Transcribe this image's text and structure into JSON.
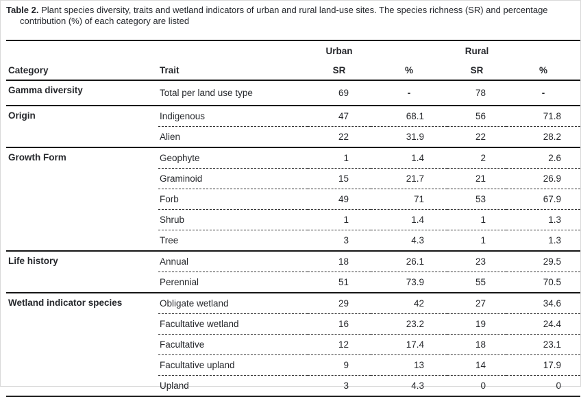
{
  "caption": {
    "label": "Table 2.",
    "text": "Plant species diversity, traits and wetland indicators of urban and rural land-use sites. The species richness (SR) and percentage contribution (%) of each category are listed"
  },
  "header": {
    "urban": "Urban",
    "rural": "Rural",
    "category": "Category",
    "trait": "Trait",
    "sr": "SR",
    "pct": "%"
  },
  "groups": [
    {
      "category": "Gamma diversity",
      "rows": [
        {
          "trait": "Total per land use type",
          "usr": "69",
          "upct": "-",
          "rsr": "78",
          "rpct": "-"
        }
      ]
    },
    {
      "category": "Origin",
      "rows": [
        {
          "trait": "Indigenous",
          "usr": "47",
          "upct": "68.1",
          "rsr": "56",
          "rpct": "71.8"
        },
        {
          "trait": "Alien",
          "usr": "22",
          "upct": "31.9",
          "rsr": "22",
          "rpct": "28.2"
        }
      ]
    },
    {
      "category": "Growth Form",
      "rows": [
        {
          "trait": "Geophyte",
          "usr": "1",
          "upct": "1.4",
          "rsr": "2",
          "rpct": "2.6"
        },
        {
          "trait": "Graminoid",
          "usr": "15",
          "upct": "21.7",
          "rsr": "21",
          "rpct": "26.9"
        },
        {
          "trait": "Forb",
          "usr": "49",
          "upct": "71",
          "rsr": "53",
          "rpct": "67.9"
        },
        {
          "trait": "Shrub",
          "usr": "1",
          "upct": "1.4",
          "rsr": "1",
          "rpct": "1.3"
        },
        {
          "trait": "Tree",
          "usr": "3",
          "upct": "4.3",
          "rsr": "1",
          "rpct": "1.3"
        }
      ]
    },
    {
      "category": "Life history",
      "rows": [
        {
          "trait": "Annual",
          "usr": "18",
          "upct": "26.1",
          "rsr": "23",
          "rpct": "29.5"
        },
        {
          "trait": "Perennial",
          "usr": "51",
          "upct": "73.9",
          "rsr": "55",
          "rpct": "70.5"
        }
      ]
    },
    {
      "category": "Wetland indicator species",
      "rows": [
        {
          "trait": "Obligate wetland",
          "usr": "29",
          "upct": "42",
          "rsr": "27",
          "rpct": "34.6"
        },
        {
          "trait": "Facultative wetland",
          "usr": "16",
          "upct": "23.2",
          "rsr": "19",
          "rpct": "24.4"
        },
        {
          "trait": "Facultative",
          "usr": "12",
          "upct": "17.4",
          "rsr": "18",
          "rpct": "23.1"
        },
        {
          "trait": "Facultative upland",
          "usr": "9",
          "upct": "13",
          "rsr": "14",
          "rpct": "17.9"
        },
        {
          "trait": "Upland",
          "usr": "3",
          "upct": "4.3",
          "rsr": "0",
          "rpct": "0"
        }
      ]
    }
  ],
  "colors": {
    "text": "#26282c",
    "rule": "#141414",
    "background": "#ffffff"
  }
}
